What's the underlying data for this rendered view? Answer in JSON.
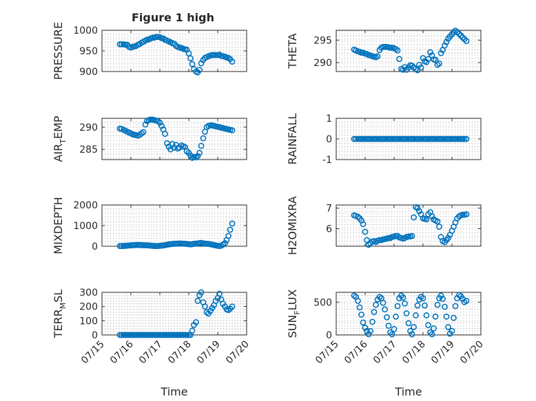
{
  "figure": {
    "title": "Figure 1 high",
    "marker_color": "#0072BD",
    "grid": "on"
  },
  "chart_data": [
    {
      "type": "scatter",
      "id": "pressure",
      "ylabel": "PRESSURE",
      "ylim": [
        900,
        1000
      ],
      "yticks": [
        900,
        950,
        1000
      ],
      "yticklabels": [
        "900",
        "950",
        "1000"
      ],
      "xlim": [
        0,
        5
      ],
      "xticks": [
        0,
        1,
        2,
        3,
        4,
        5
      ],
      "xticklabels": [
        "07/15",
        "07/16",
        "07/17",
        "07/18",
        "07/19",
        "07/20"
      ],
      "show_xticklabels": false,
      "xlabel": "",
      "title": "Figure 1 high",
      "x": [
        0.62,
        0.68,
        0.75,
        0.81,
        0.87,
        0.93,
        1.0,
        1.06,
        1.12,
        1.18,
        1.25,
        1.31,
        1.37,
        1.43,
        1.5,
        1.56,
        1.62,
        1.68,
        1.75,
        1.81,
        1.87,
        1.93,
        2.0,
        2.06,
        2.12,
        2.18,
        2.25,
        2.31,
        2.37,
        2.43,
        2.5,
        2.56,
        2.62,
        2.68,
        2.75,
        2.81,
        2.87,
        2.93,
        3.0,
        3.06,
        3.12,
        3.18,
        3.25,
        3.31,
        3.37,
        3.43,
        3.5,
        3.56,
        3.62,
        3.68,
        3.75,
        3.81,
        3.87,
        3.93,
        4.0,
        4.06,
        4.12,
        4.18,
        4.25,
        4.31,
        4.37,
        4.43,
        4.5
      ],
      "y": [
        966,
        966,
        966,
        965,
        965,
        960,
        958,
        960,
        961,
        962,
        965,
        967,
        970,
        972,
        975,
        977,
        978,
        980,
        982,
        982,
        984,
        984,
        983,
        981,
        980,
        977,
        975,
        973,
        971,
        969,
        967,
        962,
        960,
        958,
        957,
        955,
        954,
        953,
        944,
        932,
        918,
        906,
        900,
        898,
        904,
        920,
        928,
        933,
        935,
        937,
        939,
        940,
        940,
        940,
        940,
        941,
        938,
        937,
        936,
        934,
        933,
        930,
        924
      ]
    },
    {
      "type": "scatter",
      "id": "theta",
      "ylabel": "THETA",
      "ylim": [
        288.0,
        297.2
      ],
      "yticks": [
        290,
        295
      ],
      "yticklabels": [
        "290",
        "295"
      ],
      "xlim": [
        0,
        5
      ],
      "xticks": [
        0,
        1,
        2,
        3,
        4,
        5
      ],
      "xticklabels": [
        "07/15",
        "07/16",
        "07/17",
        "07/18",
        "07/19",
        "07/20"
      ],
      "show_xticklabels": false,
      "xlabel": "",
      "x": [
        0.62,
        0.68,
        0.75,
        0.81,
        0.87,
        0.93,
        1.0,
        1.06,
        1.12,
        1.18,
        1.25,
        1.31,
        1.37,
        1.43,
        1.5,
        1.56,
        1.62,
        1.68,
        1.75,
        1.81,
        1.87,
        1.93,
        2.0,
        2.06,
        2.12,
        2.18,
        2.25,
        2.31,
        2.37,
        2.43,
        2.5,
        2.56,
        2.62,
        2.68,
        2.75,
        2.81,
        2.87,
        2.93,
        3.0,
        3.06,
        3.12,
        3.18,
        3.25,
        3.31,
        3.37,
        3.43,
        3.5,
        3.56,
        3.62,
        3.68,
        3.75,
        3.81,
        3.87,
        3.93,
        4.0,
        4.06,
        4.12,
        4.18,
        4.25,
        4.31,
        4.37,
        4.43,
        4.5
      ],
      "y": [
        292.9,
        292.7,
        292.5,
        292.4,
        292.2,
        292.2,
        292.0,
        291.9,
        291.7,
        291.6,
        291.4,
        291.3,
        291.2,
        291.4,
        292.8,
        293.3,
        293.5,
        293.5,
        293.5,
        293.4,
        293.3,
        293.3,
        293.2,
        293.0,
        292.7,
        290.8,
        288.6,
        288.4,
        289.0,
        288.4,
        288.9,
        289.4,
        289.3,
        288.9,
        288.6,
        288.3,
        289.5,
        288.9,
        291.0,
        290.3,
        290.1,
        290.8,
        292.3,
        291.6,
        290.7,
        290.6,
        289.5,
        289.8,
        292.1,
        292.8,
        293.8,
        294.6,
        295.3,
        295.8,
        296.3,
        296.8,
        297.1,
        296.8,
        296.4,
        296.0,
        295.6,
        295.2,
        294.8
      ]
    },
    {
      "type": "scatter",
      "id": "air_temp",
      "ylabel": "AIR_TEMP",
      "ylim": [
        282.7,
        292.0
      ],
      "yticks": [
        285,
        290
      ],
      "yticklabels": [
        "285",
        "290"
      ],
      "xlim": [
        0,
        5
      ],
      "xticks": [
        0,
        1,
        2,
        3,
        4,
        5
      ],
      "xticklabels": [
        "07/15",
        "07/16",
        "07/17",
        "07/18",
        "07/19",
        "07/20"
      ],
      "show_xticklabels": false,
      "xlabel": "",
      "x": [
        0.62,
        0.68,
        0.75,
        0.81,
        0.87,
        0.93,
        1.0,
        1.06,
        1.12,
        1.18,
        1.25,
        1.31,
        1.37,
        1.43,
        1.5,
        1.56,
        1.62,
        1.68,
        1.75,
        1.81,
        1.87,
        1.93,
        2.0,
        2.06,
        2.12,
        2.18,
        2.25,
        2.31,
        2.37,
        2.43,
        2.5,
        2.56,
        2.62,
        2.68,
        2.75,
        2.81,
        2.87,
        2.93,
        3.0,
        3.06,
        3.12,
        3.18,
        3.25,
        3.31,
        3.37,
        3.43,
        3.5,
        3.56,
        3.62,
        3.68,
        3.75,
        3.81,
        3.87,
        3.93,
        4.0,
        4.06,
        4.12,
        4.18,
        4.25,
        4.31,
        4.37,
        4.43,
        4.5
      ],
      "y": [
        289.7,
        289.6,
        289.4,
        289.2,
        289.0,
        288.8,
        288.6,
        288.4,
        288.3,
        288.2,
        288.1,
        288.3,
        288.6,
        288.9,
        290.6,
        291.4,
        291.6,
        291.7,
        291.7,
        291.6,
        291.5,
        291.4,
        291.0,
        290.3,
        289.5,
        288.5,
        286.4,
        285.6,
        285.0,
        286.2,
        285.4,
        286.0,
        285.2,
        285.4,
        285.9,
        285.7,
        285.5,
        284.6,
        284.2,
        283.6,
        283.1,
        283.3,
        283.2,
        283.5,
        284.2,
        285.8,
        287.5,
        289.0,
        290.0,
        290.3,
        290.4,
        290.4,
        290.3,
        290.2,
        290.1,
        290.0,
        289.9,
        289.8,
        289.7,
        289.6,
        289.5,
        289.4,
        289.3
      ]
    },
    {
      "type": "scatter",
      "id": "rainfall",
      "ylabel": "RAINFALL",
      "ylim": [
        -1,
        1
      ],
      "yticks": [
        -1,
        0,
        1
      ],
      "yticklabels": [
        "-1",
        "0",
        "1"
      ],
      "xlim": [
        0,
        5
      ],
      "xticks": [
        0,
        1,
        2,
        3,
        4,
        5
      ],
      "xticklabels": [
        "07/15",
        "07/16",
        "07/17",
        "07/18",
        "07/19",
        "07/20"
      ],
      "show_xticklabels": false,
      "xlabel": "",
      "x": [
        0.62,
        0.68,
        0.75,
        0.81,
        0.87,
        0.93,
        1.0,
        1.06,
        1.12,
        1.18,
        1.25,
        1.31,
        1.37,
        1.43,
        1.5,
        1.56,
        1.62,
        1.68,
        1.75,
        1.81,
        1.87,
        1.93,
        2.0,
        2.06,
        2.12,
        2.18,
        2.25,
        2.31,
        2.37,
        2.43,
        2.5,
        2.56,
        2.62,
        2.68,
        2.75,
        2.81,
        2.87,
        2.93,
        3.0,
        3.06,
        3.12,
        3.18,
        3.25,
        3.31,
        3.37,
        3.43,
        3.5,
        3.56,
        3.62,
        3.68,
        3.75,
        3.81,
        3.87,
        3.93,
        4.0,
        4.06,
        4.12,
        4.18,
        4.25,
        4.31,
        4.37,
        4.43,
        4.5
      ],
      "y": [
        0,
        0,
        0,
        0,
        0,
        0,
        0,
        0,
        0,
        0,
        0,
        0,
        0,
        0,
        0,
        0,
        0,
        0,
        0,
        0,
        0,
        0,
        0,
        0,
        0,
        0,
        0,
        0,
        0,
        0,
        0,
        0,
        0,
        0,
        0,
        0,
        0,
        0,
        0,
        0,
        0,
        0,
        0,
        0,
        0,
        0,
        0,
        0,
        0,
        0,
        0,
        0,
        0,
        0,
        0,
        0,
        0,
        0,
        0,
        0,
        0,
        0,
        0
      ]
    },
    {
      "type": "scatter",
      "id": "mixdepth",
      "ylabel": "MIXDEPTH",
      "ylim": [
        0,
        2000
      ],
      "yticks": [
        0,
        1000,
        2000
      ],
      "yticklabels": [
        "0",
        "1000",
        "2000"
      ],
      "xlim": [
        0,
        5
      ],
      "xticks": [
        0,
        1,
        2,
        3,
        4,
        5
      ],
      "xticklabels": [
        "07/15",
        "07/16",
        "07/17",
        "07/18",
        "07/19",
        "07/20"
      ],
      "show_xticklabels": false,
      "xlabel": "",
      "x": [
        0.62,
        0.68,
        0.75,
        0.81,
        0.87,
        0.93,
        1.0,
        1.06,
        1.12,
        1.18,
        1.25,
        1.31,
        1.37,
        1.43,
        1.5,
        1.56,
        1.62,
        1.68,
        1.75,
        1.81,
        1.87,
        1.93,
        2.0,
        2.06,
        2.12,
        2.18,
        2.25,
        2.31,
        2.37,
        2.43,
        2.5,
        2.56,
        2.62,
        2.68,
        2.75,
        2.81,
        2.87,
        2.93,
        3.0,
        3.06,
        3.12,
        3.18,
        3.25,
        3.31,
        3.37,
        3.43,
        3.5,
        3.56,
        3.62,
        3.68,
        3.75,
        3.81,
        3.87,
        3.93,
        4.0,
        4.06,
        4.12,
        4.18,
        4.25,
        4.31,
        4.37,
        4.43,
        4.5
      ],
      "y": [
        10,
        12,
        14,
        20,
        30,
        38,
        45,
        50,
        55,
        60,
        62,
        60,
        55,
        50,
        48,
        45,
        40,
        30,
        22,
        15,
        10,
        12,
        20,
        30,
        40,
        55,
        75,
        90,
        100,
        110,
        120,
        125,
        130,
        135,
        130,
        125,
        120,
        110,
        100,
        90,
        100,
        120,
        130,
        140,
        150,
        160,
        140,
        130,
        120,
        110,
        100,
        80,
        60,
        40,
        20,
        10,
        30,
        80,
        150,
        300,
        500,
        800,
        1100
      ]
    },
    {
      "type": "scatter",
      "id": "h2omixra",
      "ylabel": "H2OMIXRA",
      "ylim": [
        5.15,
        7.15
      ],
      "yticks": [
        6,
        7
      ],
      "yticklabels": [
        "6",
        "7"
      ],
      "xlim": [
        0,
        5
      ],
      "xticks": [
        0,
        1,
        2,
        3,
        4,
        5
      ],
      "xticklabels": [
        "07/15",
        "07/16",
        "07/17",
        "07/18",
        "07/19",
        "07/20"
      ],
      "show_xticklabels": false,
      "xlabel": "",
      "x": [
        0.62,
        0.68,
        0.75,
        0.81,
        0.87,
        0.93,
        1.0,
        1.06,
        1.12,
        1.18,
        1.25,
        1.31,
        1.37,
        1.43,
        1.5,
        1.56,
        1.62,
        1.68,
        1.75,
        1.81,
        1.87,
        1.93,
        2.0,
        2.06,
        2.12,
        2.18,
        2.25,
        2.31,
        2.37,
        2.43,
        2.5,
        2.56,
        2.62,
        2.68,
        2.75,
        2.81,
        2.87,
        2.93,
        3.0,
        3.06,
        3.12,
        3.18,
        3.25,
        3.31,
        3.37,
        3.43,
        3.5,
        3.56,
        3.62,
        3.68,
        3.75,
        3.81,
        3.87,
        3.93,
        4.0,
        4.06,
        4.12,
        4.18,
        4.25,
        4.31,
        4.37,
        4.43,
        4.5
      ],
      "y": [
        6.65,
        6.62,
        6.58,
        6.5,
        6.4,
        6.22,
        5.85,
        5.45,
        5.22,
        5.3,
        5.38,
        5.4,
        5.35,
        5.42,
        5.45,
        5.45,
        5.48,
        5.5,
        5.52,
        5.55,
        5.55,
        5.6,
        5.62,
        5.65,
        5.65,
        5.58,
        5.55,
        5.52,
        5.55,
        5.6,
        5.62,
        5.62,
        5.65,
        6.55,
        7.05,
        7.0,
        6.85,
        6.7,
        6.5,
        6.48,
        6.45,
        6.7,
        6.8,
        6.6,
        6.45,
        6.4,
        6.35,
        6.1,
        5.6,
        5.4,
        5.35,
        5.45,
        5.55,
        5.7,
        5.9,
        6.1,
        6.3,
        6.5,
        6.6,
        6.65,
        6.68,
        6.68,
        6.7
      ]
    },
    {
      "type": "scatter",
      "id": "terr_msl",
      "ylabel": "TERR_MSL",
      "ylim": [
        0,
        300
      ],
      "yticks": [
        0,
        100,
        200,
        300
      ],
      "yticklabels": [
        "0",
        "100",
        "200",
        "300"
      ],
      "xlim": [
        0,
        5
      ],
      "xticks": [
        0,
        1,
        2,
        3,
        4,
        5
      ],
      "xticklabels": [
        "07/15",
        "07/16",
        "07/17",
        "07/18",
        "07/19",
        "07/20"
      ],
      "show_xticklabels": true,
      "xlabel": "Time",
      "x": [
        0.62,
        0.68,
        0.75,
        0.81,
        0.87,
        0.93,
        1.0,
        1.06,
        1.12,
        1.18,
        1.25,
        1.31,
        1.37,
        1.43,
        1.5,
        1.56,
        1.62,
        1.68,
        1.75,
        1.81,
        1.87,
        1.93,
        2.0,
        2.06,
        2.12,
        2.18,
        2.25,
        2.31,
        2.37,
        2.43,
        2.5,
        2.56,
        2.62,
        2.68,
        2.75,
        2.81,
        2.87,
        2.93,
        3.0,
        3.06,
        3.12,
        3.18,
        3.25,
        3.31,
        3.37,
        3.43,
        3.5,
        3.56,
        3.62,
        3.68,
        3.75,
        3.81,
        3.87,
        3.93,
        4.0,
        4.06,
        4.12,
        4.18,
        4.25,
        4.31,
        4.37,
        4.43,
        4.5
      ],
      "y": [
        0,
        0,
        0,
        0,
        0,
        0,
        0,
        0,
        0,
        0,
        0,
        0,
        0,
        0,
        0,
        0,
        0,
        0,
        0,
        0,
        0,
        0,
        0,
        0,
        0,
        0,
        0,
        0,
        0,
        0,
        0,
        0,
        0,
        0,
        0,
        0,
        0,
        0,
        0,
        0,
        30,
        70,
        90,
        240,
        280,
        300,
        230,
        200,
        160,
        150,
        170,
        190,
        210,
        240,
        260,
        290,
        250,
        220,
        200,
        180,
        175,
        185,
        200
      ]
    },
    {
      "type": "scatter",
      "id": "sun_flux",
      "ylabel": "SUN_FLUX",
      "ylim": [
        0,
        650
      ],
      "yticks": [
        0,
        500
      ],
      "yticklabels": [
        "0",
        "500"
      ],
      "xlim": [
        0,
        5
      ],
      "xticks": [
        0,
        1,
        2,
        3,
        4,
        5
      ],
      "xticklabels": [
        "07/15",
        "07/16",
        "07/17",
        "07/18",
        "07/19",
        "07/20"
      ],
      "show_xticklabels": true,
      "xlabel": "Time",
      "x": [
        0.62,
        0.68,
        0.75,
        0.81,
        0.87,
        0.93,
        1.0,
        1.06,
        1.12,
        1.18,
        1.25,
        1.31,
        1.37,
        1.43,
        1.5,
        1.56,
        1.62,
        1.68,
        1.75,
        1.81,
        1.87,
        1.93,
        2.0,
        2.06,
        2.12,
        2.18,
        2.25,
        2.31,
        2.37,
        2.43,
        2.5,
        2.56,
        2.62,
        2.68,
        2.75,
        2.81,
        2.87,
        2.93,
        3.0,
        3.06,
        3.12,
        3.18,
        3.25,
        3.31,
        3.37,
        3.43,
        3.5,
        3.56,
        3.62,
        3.68,
        3.75,
        3.81,
        3.87,
        3.93,
        4.0,
        4.06,
        4.12,
        4.18,
        4.25,
        4.31,
        4.37,
        4.43,
        4.5
      ],
      "y": [
        600,
        580,
        520,
        420,
        310,
        190,
        110,
        60,
        10,
        60,
        200,
        350,
        460,
        540,
        580,
        560,
        490,
        390,
        270,
        140,
        40,
        10,
        90,
        280,
        440,
        560,
        600,
        570,
        480,
        330,
        180,
        60,
        10,
        120,
        300,
        450,
        540,
        580,
        560,
        450,
        300,
        150,
        40,
        10,
        100,
        280,
        460,
        560,
        600,
        550,
        430,
        280,
        120,
        20,
        60,
        260,
        440,
        560,
        610,
        590,
        550,
        500,
        520
      ]
    }
  ]
}
